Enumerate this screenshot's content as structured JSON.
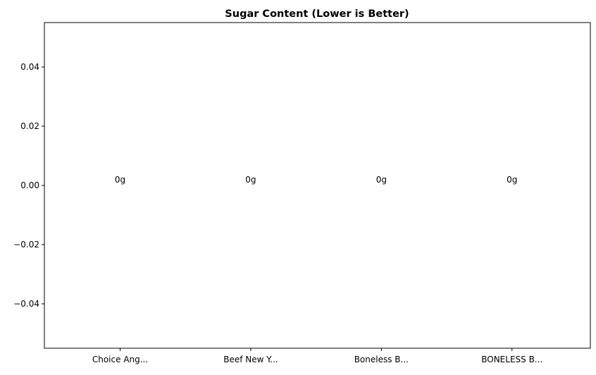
{
  "chart_data": {
    "type": "bar",
    "title": "Sugar Content (Lower is Better)",
    "xlabel": "",
    "ylabel": "",
    "categories": [
      "Choice Ang...",
      "Beef New Y...",
      "Boneless B...",
      "BONELESS B..."
    ],
    "values": [
      0,
      0,
      0,
      0
    ],
    "data_labels": [
      "0g",
      "0g",
      "0g",
      "0g"
    ],
    "ylim": [
      -0.055,
      0.055
    ],
    "yticks": [
      -0.04,
      -0.02,
      0.0,
      0.02,
      0.04
    ],
    "ytick_labels": [
      "−0.04",
      "−0.02",
      "0.00",
      "0.02",
      "0.04"
    ],
    "grid": false
  }
}
